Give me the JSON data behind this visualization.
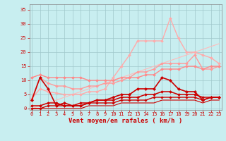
{
  "background_color": "#c8eef0",
  "grid_color": "#a0c8cc",
  "x_values": [
    0,
    1,
    2,
    3,
    4,
    5,
    6,
    7,
    8,
    9,
    10,
    11,
    12,
    13,
    14,
    15,
    16,
    17,
    18,
    19,
    20,
    21,
    22,
    23
  ],
  "xlabel": "Vent moyen/en rafales ( km/h )",
  "xlabel_color": "#cc0000",
  "yticks": [
    0,
    5,
    10,
    15,
    20,
    25,
    30,
    35
  ],
  "ylim": [
    -0.5,
    37
  ],
  "xlim": [
    -0.3,
    23.3
  ],
  "lines": [
    {
      "y": [
        3.5,
        7,
        6,
        5.5,
        5,
        5,
        5,
        6,
        6,
        7,
        11,
        15,
        19,
        24,
        24,
        24,
        24,
        32,
        25,
        20,
        20,
        19,
        18,
        16
      ],
      "color": "#ffaaaa",
      "lw": 1.0,
      "marker": "D",
      "ms": 2.0,
      "zorder": 4
    },
    {
      "y": [
        0,
        1,
        2,
        3,
        4,
        5,
        6,
        7,
        8,
        9,
        10,
        11,
        12,
        13,
        14,
        15,
        16,
        17,
        18,
        19,
        20,
        21,
        22,
        23
      ],
      "color": "#ffbbbb",
      "lw": 0.8,
      "marker": null,
      "ms": 0,
      "zorder": 2
    },
    {
      "y": [
        3.5,
        11,
        9,
        8,
        8,
        7,
        7,
        8,
        8,
        9,
        9,
        10,
        11,
        13,
        13,
        14,
        16,
        16,
        16,
        16,
        19,
        14,
        14,
        15
      ],
      "color": "#ff9999",
      "lw": 1.0,
      "marker": "D",
      "ms": 2.0,
      "zorder": 4
    },
    {
      "y": [
        11,
        12,
        11,
        11,
        11,
        11,
        11,
        10,
        10,
        10,
        10,
        11,
        11,
        11,
        12,
        12,
        14,
        14,
        14,
        15,
        15,
        14,
        15,
        15
      ],
      "color": "#ff8888",
      "lw": 1.0,
      "marker": "D",
      "ms": 2.0,
      "zorder": 4
    },
    {
      "y": [
        3,
        11,
        7,
        1,
        2,
        1,
        1,
        2,
        3,
        3,
        4,
        5,
        5,
        7,
        7,
        7,
        11,
        10,
        7,
        6,
        6,
        3,
        4,
        4
      ],
      "color": "#cc0000",
      "lw": 1.2,
      "marker": "D",
      "ms": 2.2,
      "zorder": 6
    },
    {
      "y": [
        1,
        1,
        2,
        2,
        1,
        1,
        2,
        2,
        3,
        3,
        3,
        4,
        4,
        4,
        5,
        5,
        6,
        6,
        5,
        5,
        5,
        4,
        4,
        4
      ],
      "color": "#cc0000",
      "lw": 1.1,
      "marker": "D",
      "ms": 2.0,
      "zorder": 6
    },
    {
      "y": [
        0,
        0,
        1,
        1,
        1,
        1,
        1,
        2,
        2,
        2,
        2,
        3,
        3,
        3,
        3,
        4,
        4,
        4,
        4,
        4,
        4,
        3,
        4,
        4
      ],
      "color": "#cc0000",
      "lw": 1.0,
      "marker": "D",
      "ms": 1.8,
      "zorder": 6
    },
    {
      "y": [
        0,
        0,
        0,
        0,
        0,
        0,
        0,
        1,
        1,
        1,
        1,
        2,
        2,
        2,
        2,
        2,
        3,
        3,
        3,
        3,
        3,
        2,
        3,
        3
      ],
      "color": "#cc0000",
      "lw": 0.8,
      "marker": null,
      "ms": 0,
      "zorder": 5
    }
  ],
  "tick_label_color": "#cc0000",
  "tick_fontsize": 5.0,
  "xlabel_fontsize": 6.5
}
